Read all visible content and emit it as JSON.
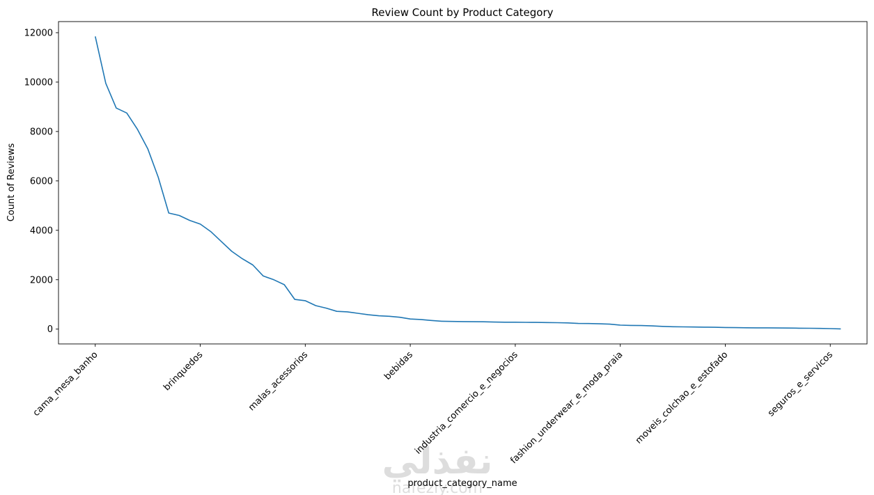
{
  "chart_data": {
    "type": "line",
    "title": "Review Count by Product Category",
    "xlabel": "product_category_name",
    "ylabel": "Count of Reviews",
    "x_tick_labels": [
      {
        "index": 0,
        "label": "cama_mesa_banho"
      },
      {
        "index": 10,
        "label": "brinquedos"
      },
      {
        "index": 20,
        "label": "malas_acessorios"
      },
      {
        "index": 30,
        "label": "bebidas"
      },
      {
        "index": 40,
        "label": "industria_comercio_e_negocios"
      },
      {
        "index": 50,
        "label": "fashion_underwear_e_moda_praia"
      },
      {
        "index": 60,
        "label": "moveis_colchao_e_estofado"
      },
      {
        "index": 70,
        "label": "seguros_e_servicos"
      }
    ],
    "y_ticks": [
      0,
      2000,
      4000,
      6000,
      8000,
      10000,
      12000
    ],
    "ylim": [
      -600,
      12450
    ],
    "xlim": [
      -3.5,
      73.5
    ],
    "grid": false,
    "color": "#1f77b4",
    "series": [
      {
        "values": [
          11850,
          9950,
          8950,
          8750,
          8100,
          7300,
          6150,
          4700,
          4600,
          4400,
          4250,
          3950,
          3550,
          3150,
          2850,
          2600,
          2150,
          2000,
          1800,
          1200,
          1150,
          950,
          850,
          720,
          700,
          640,
          580,
          540,
          520,
          480,
          410,
          390,
          350,
          320,
          310,
          305,
          300,
          295,
          285,
          280,
          280,
          275,
          270,
          265,
          260,
          250,
          230,
          225,
          215,
          200,
          160,
          150,
          145,
          130,
          110,
          95,
          90,
          85,
          80,
          75,
          65,
          60,
          55,
          52,
          50,
          45,
          42,
          38,
          33,
          28,
          20,
          10
        ]
      }
    ]
  },
  "watermark": {
    "text": "نفذلي",
    "subtext": "nafezly.com"
  }
}
